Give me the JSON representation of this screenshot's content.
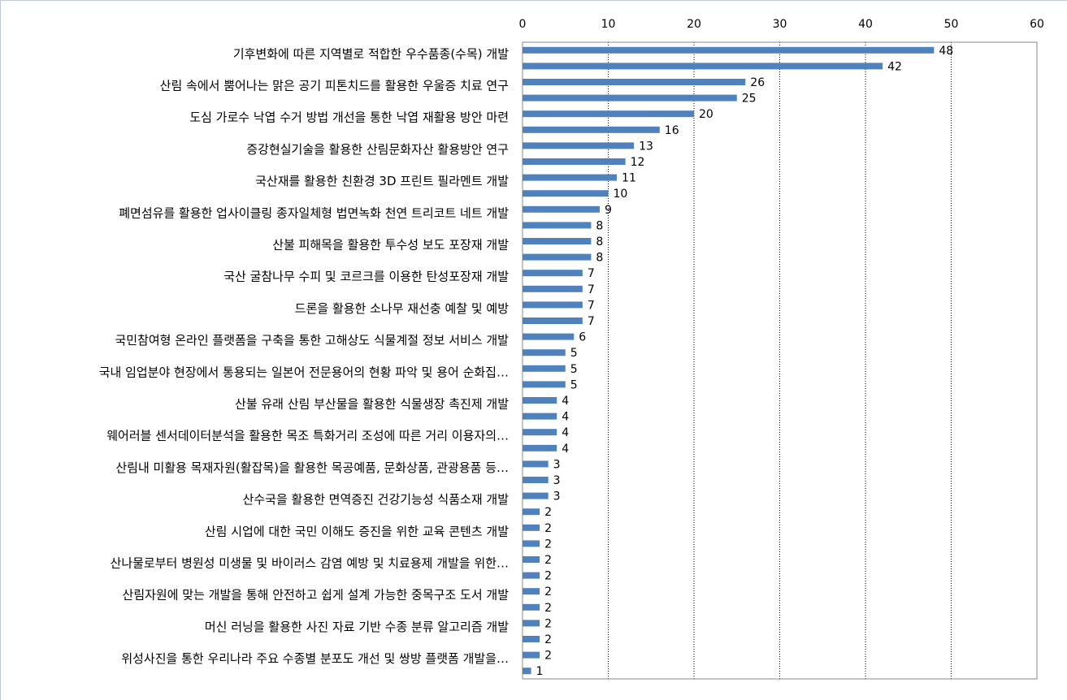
{
  "chart_data": {
    "type": "bar",
    "orientation": "horizontal",
    "categories": [
      "기후변화에 따른 지역별로 적합한 우수품종(수목) 개발",
      null,
      "산림 속에서 뿜어나는 맑은 공기 피톤치드를 활용한 우울증 치료 연구",
      null,
      "도심 가로수 낙엽 수거 방법 개선을 통한 낙엽 재활용 방안 마련",
      null,
      "증강현실기술을 활용한 산림문화자산 활용방안 연구",
      null,
      "국산재를 활용한 친환경 3D 프린트 필라멘트 개발",
      null,
      "폐면섬유를 활용한 업사이클링 종자일체형 법면녹화 천연 트리코트 네트 개발",
      null,
      "산불 피해목을 활용한 투수성 보도 포장재 개발",
      null,
      "국산 굴참나무 수피 및 코르크를 이용한 탄성포장재 개발",
      null,
      "드론을 활용한 소나무 재선충 예찰 및 예방",
      null,
      "국민참여형 온라인 플랫폼을 구축을 통한 고해상도 식물계절 정보 서비스 개발",
      null,
      "국내 임업분야 현장에서 통용되는 일본어 전문용어의 현황 파악 및 용어 순화집…",
      null,
      "산불 유래 산림 부산물을 활용한 식물생장 촉진제 개발",
      null,
      "웨어러블 센서데이터분석을  활용한 목조 특화거리 조성에 따른 거리 이용자의…",
      null,
      "산림내 미활용 목재자원(활잡목)을 활용한 목공예품, 문화상품, 관광용품 등…",
      null,
      "산수국을 활용한 면역증진 건강기능성 식품소재 개발",
      null,
      "산림 시업에 대한 국민 이해도 증진을 위한 교육 콘텐츠 개발",
      null,
      "산나물로부터 병원성 미생물 및 바이러스 감염 예방 및 치료용제 개발을 위한…",
      null,
      "산림자원에 맞는 개발을 통해 안전하고 쉽게 설계 가능한 중목구조 도서 개발",
      null,
      "머신 러닝을 활용한 사진 자료 기반 수종 분류 알고리즘 개발",
      null,
      "위성사진을 통한 우리나라 주요 수종별 분포도 개선 및 쌍방 플랫폼 개발을…",
      null
    ],
    "values": [
      48,
      42,
      26,
      25,
      20,
      16,
      13,
      12,
      11,
      10,
      9,
      8,
      8,
      8,
      7,
      7,
      7,
      7,
      6,
      5,
      5,
      5,
      4,
      4,
      4,
      4,
      3,
      3,
      3,
      2,
      2,
      2,
      2,
      2,
      2,
      2,
      2,
      2,
      2,
      1
    ],
    "color": "#4f81bd",
    "xlim": [
      0,
      60
    ],
    "xticks": [
      0,
      10,
      20,
      30,
      40,
      50,
      60
    ],
    "grid": true
  }
}
